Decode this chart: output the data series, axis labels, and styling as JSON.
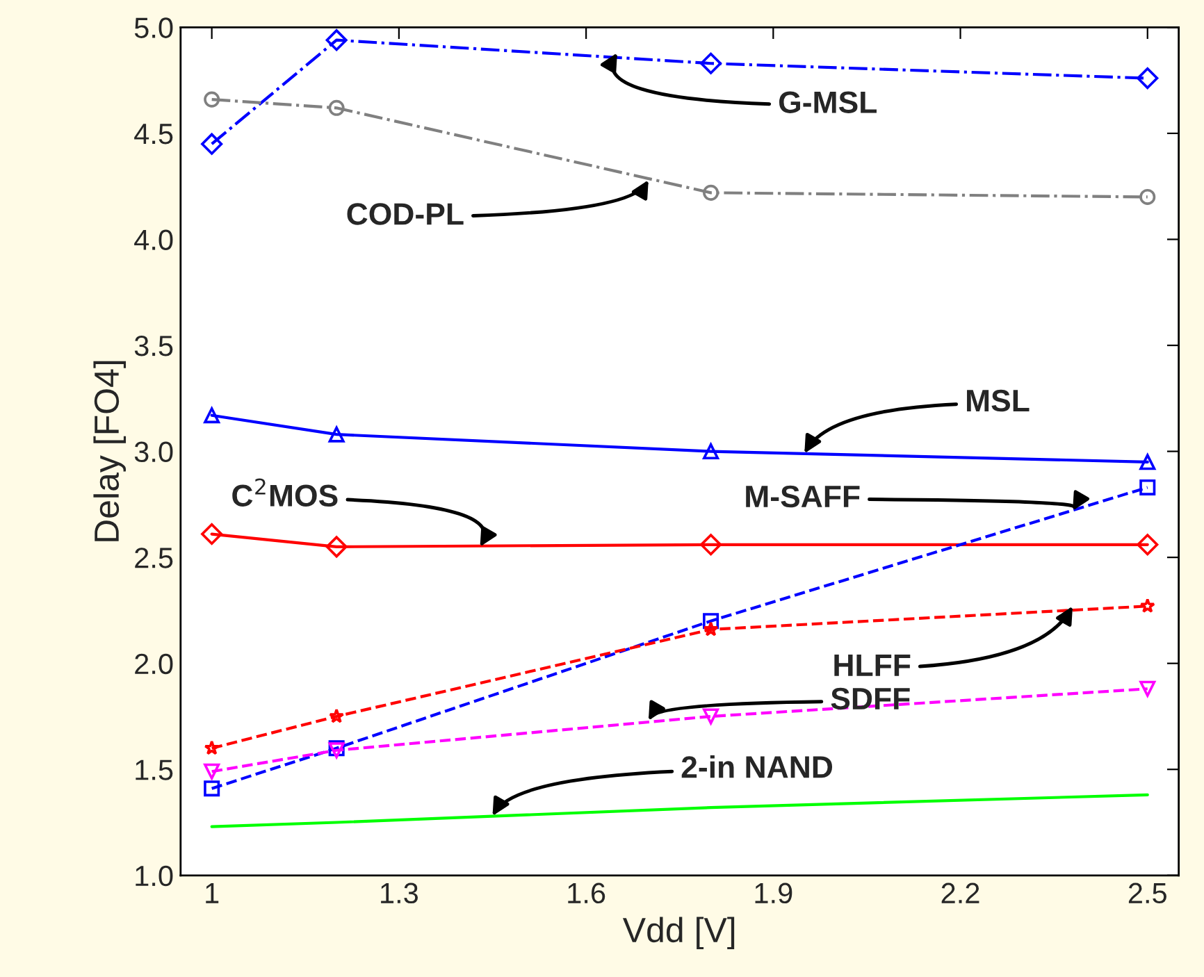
{
  "chart_data": {
    "type": "line",
    "xlabel": "Vdd [V]",
    "ylabel": "Delay [FO4]",
    "xlim": [
      0.95,
      2.55
    ],
    "xticks": [
      1,
      1.3,
      1.6,
      1.9,
      2.2,
      2.5
    ],
    "ylim": [
      1.0,
      5.0
    ],
    "yticks": [
      {
        "value": 1.0,
        "label": "1.0"
      },
      {
        "value": 1.5,
        "label": "1.5"
      },
      {
        "value": 2.0,
        "label": "2.0"
      },
      {
        "value": 2.5,
        "label": "2.5"
      },
      {
        "value": 3.0,
        "label": "3.0"
      },
      {
        "value": 3.5,
        "label": "3.5"
      },
      {
        "value": 4.0,
        "label": "4.0"
      },
      {
        "value": 4.5,
        "label": "4.5"
      },
      {
        "value": 5.0,
        "label": "5.0"
      }
    ],
    "x": [
      1,
      1.2,
      1.8,
      2.5
    ],
    "grid": false,
    "legend": false,
    "series": [
      {
        "color": "#0000ff",
        "marker": "diamond",
        "line_style": "dashdot",
        "values": [
          4.45,
          4.94,
          4.83,
          4.76
        ]
      },
      {
        "color": "#808080",
        "marker": "circle",
        "line_style": "dashdot",
        "values": [
          4.66,
          4.62,
          4.22,
          4.2
        ]
      },
      {
        "color": "#0000ff",
        "marker": "triangle",
        "line_style": "solid",
        "values": [
          3.17,
          3.08,
          3.0,
          2.95
        ]
      },
      {
        "color": "#ff0000",
        "marker": "diamond",
        "line_style": "solid",
        "values": [
          2.61,
          2.55,
          2.56,
          2.56
        ]
      },
      {
        "color": "#0000ff",
        "marker": "square",
        "line_style": "dashed",
        "values": [
          1.41,
          1.6,
          2.2,
          2.83
        ]
      },
      {
        "color": "#ff0000",
        "marker": "star",
        "line_style": "dashed",
        "values": [
          1.6,
          1.75,
          2.16,
          2.27
        ]
      },
      {
        "color": "#ff00ff",
        "marker": "triangle_down",
        "line_style": "dashed",
        "values": [
          1.49,
          1.59,
          1.75,
          1.88
        ]
      },
      {
        "color": "#00ff00",
        "marker": "none",
        "line_style": "solid",
        "values": [
          1.23,
          1.25,
          1.32,
          1.38
        ]
      }
    ],
    "annotations": [
      {
        "text": "G-MSL",
        "x": 1.65,
        "y": 4.88
      },
      {
        "text": "COD-PL",
        "x": 1.7,
        "y": 4.28
      },
      {
        "text": "MSL",
        "x": 1.95,
        "y": 2.99
      },
      {
        "text": "C$^{2}$MOS",
        "x": 1.43,
        "y": 2.55
      },
      {
        "text": "M-SAFF",
        "x": 2.38,
        "y": 2.72
      },
      {
        "text": "HLFF",
        "x": 2.38,
        "y": 2.27
      },
      {
        "text": "SDFF",
        "x": 1.7,
        "y": 1.73
      },
      {
        "text": "2-in NAND",
        "x": 1.45,
        "y": 1.28
      }
    ]
  }
}
